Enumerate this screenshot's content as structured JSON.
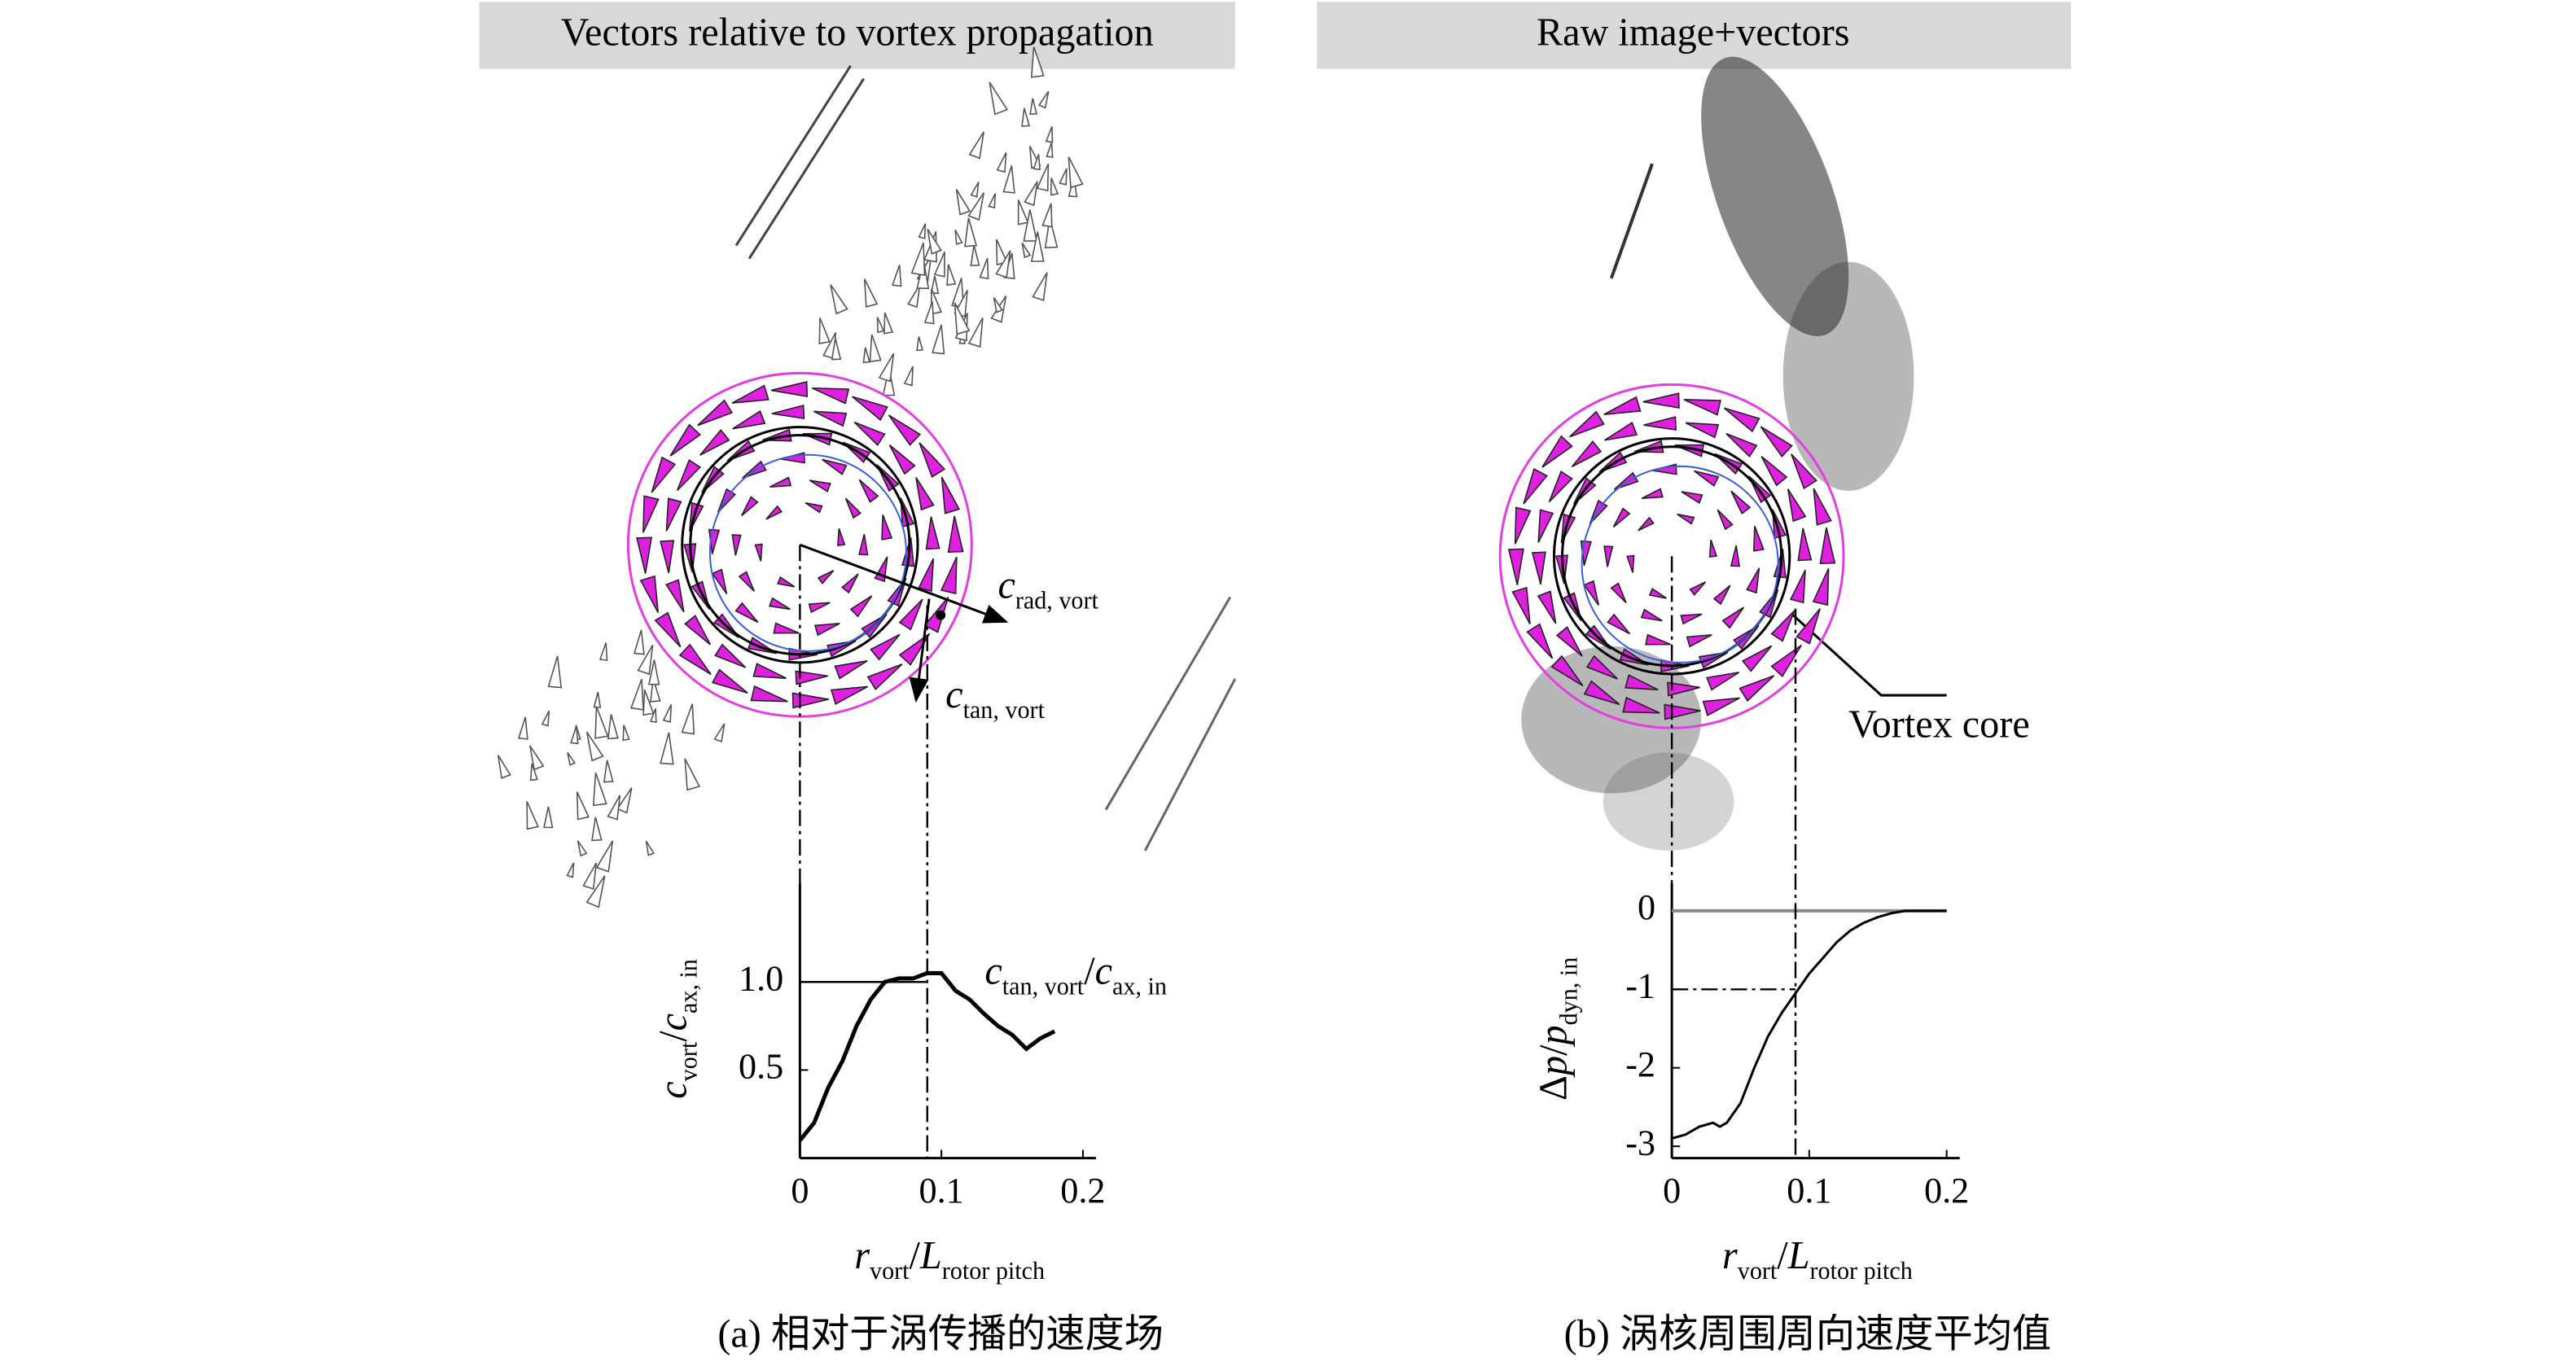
{
  "chart_data": [
    {
      "type": "line",
      "title": "Vectors relative to vortex propagation",
      "caption": "(a) 相对于涡传播的速度场",
      "annotations": {
        "radial": [
          {
            "text": "c",
            "italic": true
          },
          {
            "text": "rad, vort",
            "sub": true
          }
        ],
        "tangential": [
          {
            "text": "c",
            "italic": true
          },
          {
            "text": "tan, vort",
            "sub": true
          }
        ],
        "curve": [
          {
            "text": "c",
            "italic": true
          },
          {
            "text": "tan, vort",
            "sub": true
          },
          {
            "text": "/"
          },
          {
            "text": "c",
            "italic": true
          },
          {
            "text": "ax, in",
            "sub": true
          }
        ]
      },
      "xlabel": [
        {
          "text": "r",
          "italic": true
        },
        {
          "text": "vort",
          "sub": true
        },
        {
          "text": "/"
        },
        {
          "text": "L",
          "italic": true
        },
        {
          "text": "rotor pitch",
          "sub": true
        }
      ],
      "ylabel": [
        {
          "text": "c",
          "italic": true
        },
        {
          "text": "vort",
          "sub": true
        },
        {
          "text": "/"
        },
        {
          "text": "c",
          "italic": true
        },
        {
          "text": "ax, in",
          "sub": true
        }
      ],
      "x": [
        0,
        0.01,
        0.02,
        0.03,
        0.04,
        0.05,
        0.06,
        0.07,
        0.08,
        0.09,
        0.1,
        0.11,
        0.12,
        0.13,
        0.14,
        0.15,
        0.16,
        0.17,
        0.18
      ],
      "values": [
        0.1,
        0.2,
        0.4,
        0.55,
        0.75,
        0.9,
        1.0,
        1.02,
        1.02,
        1.05,
        1.05,
        0.95,
        0.9,
        0.82,
        0.75,
        0.7,
        0.62,
        0.68,
        0.72
      ],
      "color": "#000000",
      "xlim": [
        0,
        0.2
      ],
      "ylim": [
        0,
        1.56
      ],
      "xticks": [
        0,
        0.1,
        0.2
      ],
      "yticks": [
        0.5,
        {
          "value": 1,
          "label": "1.0"
        }
      ],
      "ref_x": 0.09,
      "ref_y": 1
    },
    {
      "type": "line",
      "title": "Raw image+vectors",
      "caption": "(b) 涡核周围周向速度平均值",
      "annotations": {
        "core": "Vortex core"
      },
      "xlabel": [
        {
          "text": "r",
          "italic": true
        },
        {
          "text": "vort",
          "sub": true
        },
        {
          "text": "/"
        },
        {
          "text": "L",
          "italic": true
        },
        {
          "text": "rotor pitch",
          "sub": true
        }
      ],
      "ylabel": [
        {
          "text": "Δ"
        },
        {
          "text": "p",
          "italic": true
        },
        {
          "text": "/"
        },
        {
          "text": "p",
          "italic": true
        },
        {
          "text": "dyn, in",
          "sub": true
        }
      ],
      "x": [
        0,
        0.01,
        0.02,
        0.03,
        0.035,
        0.04,
        0.05,
        0.06,
        0.07,
        0.08,
        0.09,
        0.1,
        0.11,
        0.12,
        0.13,
        0.14,
        0.15,
        0.16,
        0.17,
        0.2
      ],
      "values": [
        -2.9,
        -2.85,
        -2.75,
        -2.7,
        -2.75,
        -2.7,
        -2.45,
        -2.0,
        -1.6,
        -1.3,
        -1.05,
        -0.8,
        -0.6,
        -0.4,
        -0.25,
        -0.15,
        -0.08,
        -0.03,
        0,
        0
      ],
      "color": "#000000",
      "xlim": [
        0,
        0.2
      ],
      "ylim": [
        -3.15,
        0.35
      ],
      "xticks": [
        0,
        0.1,
        0.2
      ],
      "yticks": [
        -3,
        -2,
        -1,
        0
      ],
      "ref_x": 0.09,
      "ref_y": -1,
      "zero_line": 0
    }
  ]
}
